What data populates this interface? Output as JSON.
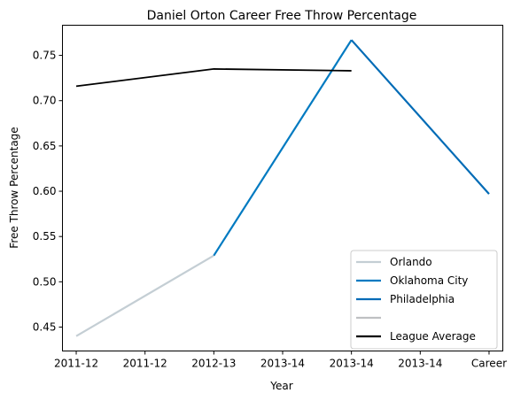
{
  "chart_data": {
    "type": "line",
    "title": "Daniel Orton Career Free Throw Percentage",
    "xlabel": "Year",
    "ylabel": "Free Throw Percentage",
    "x_tick_labels": [
      "2011-12",
      "2011-12",
      "2012-13",
      "2013-14",
      "2013-14",
      "2013-14",
      "Career"
    ],
    "xlim": [
      -0.2,
      6.2
    ],
    "ylim": [
      0.4236,
      0.7833
    ],
    "y_ticks": [
      0.45,
      0.5,
      0.55,
      0.6,
      0.65,
      0.7,
      0.75
    ],
    "y_tick_labels": [
      "0.45",
      "0.50",
      "0.55",
      "0.60",
      "0.65",
      "0.70",
      "0.75"
    ],
    "grid": false,
    "legend_position": "bottom-right",
    "series": [
      {
        "name": "Orlando",
        "color": "#c4ced4",
        "points": [
          [
            0,
            0.44
          ],
          [
            2,
            0.529
          ]
        ]
      },
      {
        "name": "Oklahoma City",
        "color": "#007ac1",
        "points": [
          [
            2,
            0.529
          ],
          [
            4,
            0.767
          ]
        ]
      },
      {
        "name": "Philadelphia",
        "color": "#006bb6",
        "points": [
          [
            4,
            0.767
          ],
          [
            6,
            0.597
          ]
        ]
      },
      {
        "name": "",
        "color": "#bec0c2",
        "points": []
      },
      {
        "name": "League Average",
        "color": "#000000",
        "points": [
          [
            0,
            0.716
          ],
          [
            2,
            0.735
          ],
          [
            4,
            0.733
          ]
        ]
      }
    ]
  }
}
